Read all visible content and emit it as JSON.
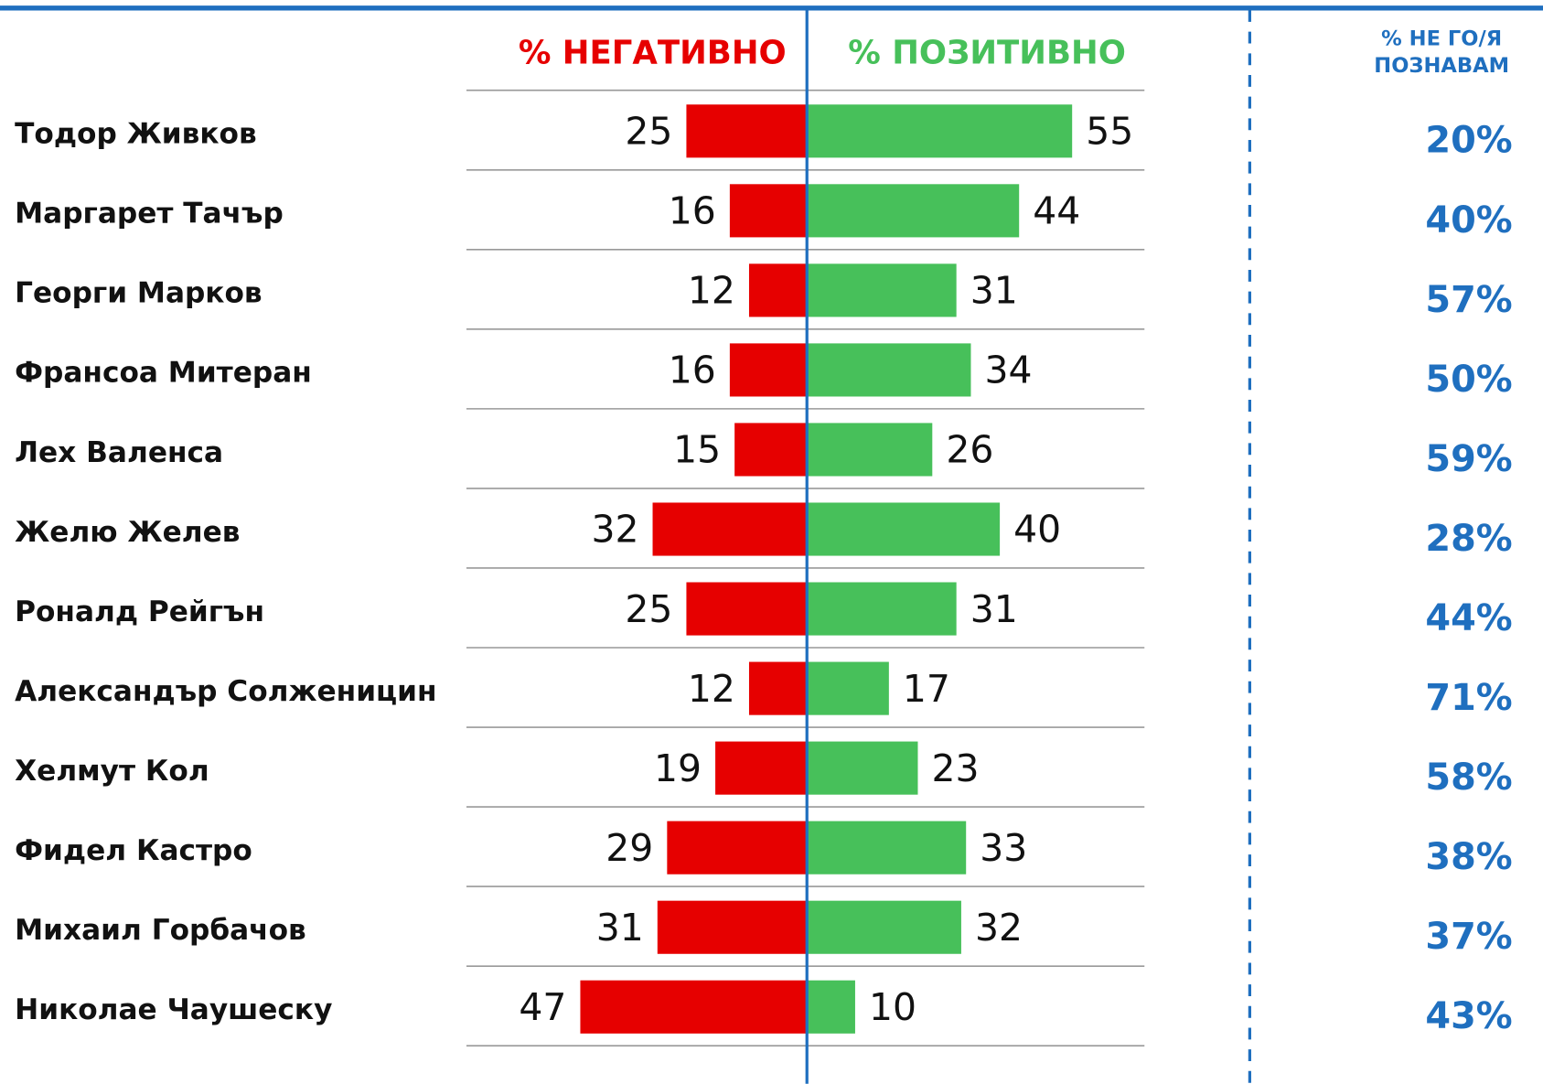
{
  "chart_data": {
    "type": "diverging_bar",
    "categories": [
      "Тодор Живков",
      "Маргарет Тачър",
      "Георги Марков",
      "Франсоа Митеран",
      "Лех Валенса",
      "Желю Желев",
      "Роналд Рейгън",
      "Александър Солженицин",
      "Хелмут Кол",
      "Фидел Кастро",
      "Михаил Горбачов",
      "Николае Чаушеску"
    ],
    "series": [
      {
        "name": "% НЕГАТИВНО",
        "color": "#e60000",
        "values": [
          25,
          16,
          12,
          16,
          15,
          32,
          25,
          12,
          19,
          29,
          31,
          47
        ]
      },
      {
        "name": "% ПОЗИТИВНО",
        "color": "#47c05a",
        "values": [
          55,
          44,
          31,
          34,
          26,
          40,
          31,
          17,
          23,
          33,
          32,
          10
        ]
      }
    ],
    "xlim": [
      0,
      70
    ],
    "side_column": {
      "title": "% НЕ ГО/Я ПОЗНАВАМ",
      "color": "#1f6fbf",
      "values": [
        20,
        40,
        57,
        50,
        59,
        28,
        44,
        71,
        58,
        38,
        37,
        43
      ],
      "value_labels": [
        "20%",
        "40%",
        "57%",
        "50%",
        "59%",
        "28%",
        "44%",
        "71%",
        "58%",
        "38%",
        "37%",
        "43%"
      ]
    }
  }
}
